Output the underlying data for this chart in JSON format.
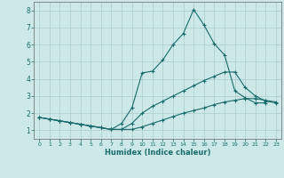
{
  "background_color": "#cce8e8",
  "grid_color": "#aacccc",
  "line_color": "#1a6b6b",
  "xlabel": "Humidex (Indice chaleur)",
  "ylim": [
    0.5,
    8.5
  ],
  "xlim": [
    -0.5,
    23.5
  ],
  "yticks": [
    1,
    2,
    3,
    4,
    5,
    6,
    7,
    8
  ],
  "xticks": [
    0,
    1,
    2,
    3,
    4,
    5,
    6,
    7,
    8,
    9,
    10,
    11,
    12,
    13,
    14,
    15,
    16,
    17,
    18,
    19,
    20,
    21,
    22,
    23
  ],
  "series1_x": [
    0,
    1,
    2,
    3,
    4,
    5,
    6,
    7,
    8,
    9,
    10,
    11,
    12,
    13,
    14,
    15,
    16,
    17,
    18,
    19,
    20,
    21,
    22
  ],
  "series1_y": [
    1.75,
    1.65,
    1.55,
    1.45,
    1.35,
    1.25,
    1.15,
    1.05,
    1.4,
    2.3,
    4.35,
    4.45,
    5.1,
    6.0,
    6.65,
    8.05,
    7.15,
    6.05,
    5.4,
    3.3,
    2.9,
    2.6,
    2.6
  ],
  "series2_x": [
    0,
    1,
    2,
    3,
    4,
    5,
    6,
    7,
    8,
    9,
    10,
    11,
    12,
    13,
    14,
    15,
    16,
    17,
    18,
    19,
    20,
    21,
    22,
    23
  ],
  "series2_y": [
    1.75,
    1.65,
    1.55,
    1.45,
    1.35,
    1.25,
    1.15,
    1.05,
    1.05,
    1.4,
    2.0,
    2.4,
    2.7,
    3.0,
    3.3,
    3.6,
    3.9,
    4.15,
    4.4,
    4.4,
    3.5,
    3.0,
    2.7,
    2.6
  ],
  "series3_x": [
    0,
    1,
    2,
    3,
    4,
    5,
    6,
    7,
    8,
    9,
    10,
    11,
    12,
    13,
    14,
    15,
    16,
    17,
    18,
    19,
    20,
    21,
    22,
    23
  ],
  "series3_y": [
    1.75,
    1.65,
    1.55,
    1.45,
    1.35,
    1.25,
    1.15,
    1.05,
    1.05,
    1.05,
    1.2,
    1.4,
    1.6,
    1.8,
    2.0,
    2.15,
    2.3,
    2.5,
    2.65,
    2.75,
    2.85,
    2.85,
    2.75,
    2.65
  ]
}
